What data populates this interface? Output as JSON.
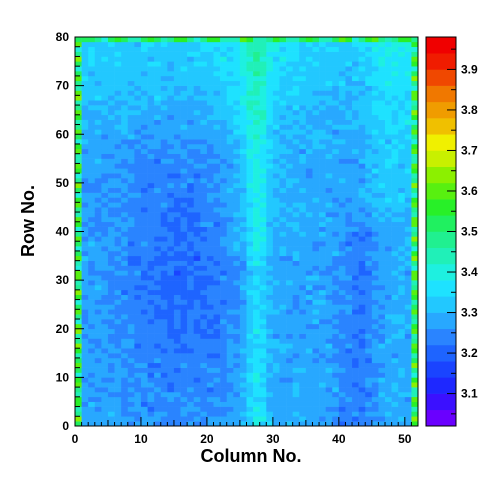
{
  "chart_data": {
    "type": "heatmap",
    "title": "",
    "xlabel": "Column No.",
    "ylabel": "Row No.",
    "xlim": [
      0,
      52
    ],
    "ylim": [
      0,
      80
    ],
    "x_bins": 52,
    "y_bins": 80,
    "x_ticks": [
      0,
      10,
      20,
      30,
      40,
      50
    ],
    "y_ticks": [
      0,
      10,
      20,
      30,
      40,
      50,
      60,
      70,
      80
    ],
    "colorbar": {
      "range": [
        3.02,
        3.98
      ],
      "ticks": [
        3.1,
        3.2,
        3.3,
        3.4,
        3.5,
        3.6,
        3.7,
        3.8,
        3.9
      ],
      "colors": [
        "#6a00ff",
        "#3b10ff",
        "#1e28ff",
        "#1a44ff",
        "#1e64ff",
        "#2a84ff",
        "#28a8ff",
        "#22c8ff",
        "#1ee2ff",
        "#1ef0e0",
        "#20f0b8",
        "#20f090",
        "#20f060",
        "#28f028",
        "#58f010",
        "#8cf000",
        "#c8f000",
        "#f0f000",
        "#f0c000",
        "#f09c00",
        "#f07800",
        "#f04800",
        "#f01c00",
        "#f00000"
      ]
    },
    "grid": false,
    "legend": "none"
  }
}
